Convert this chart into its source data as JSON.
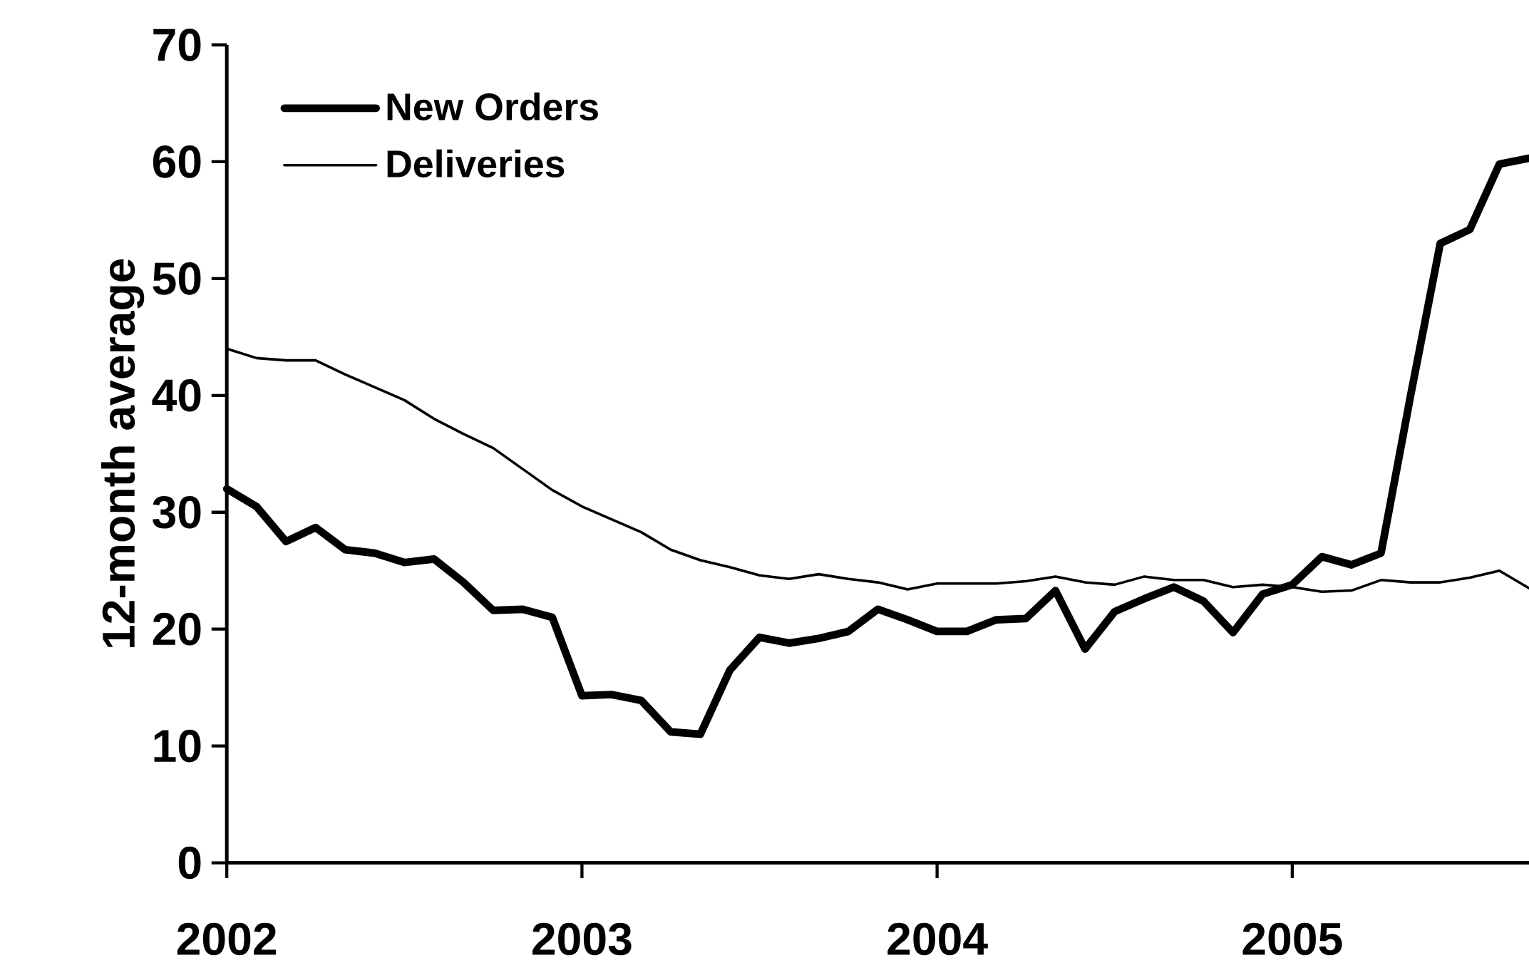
{
  "chart_data": {
    "type": "line",
    "ylabel": "12-month average",
    "x": [
      "2002-01",
      "2002-02",
      "2002-03",
      "2002-04",
      "2002-05",
      "2002-06",
      "2002-07",
      "2002-08",
      "2002-09",
      "2002-10",
      "2002-11",
      "2002-12",
      "2003-01",
      "2003-02",
      "2003-03",
      "2003-04",
      "2003-05",
      "2003-06",
      "2003-07",
      "2003-08",
      "2003-09",
      "2003-10",
      "2003-11",
      "2003-12",
      "2004-01",
      "2004-02",
      "2004-03",
      "2004-04",
      "2004-05",
      "2004-06",
      "2004-07",
      "2004-08",
      "2004-09",
      "2004-10",
      "2004-11",
      "2004-12",
      "2005-01",
      "2005-02",
      "2005-03",
      "2005-04",
      "2005-05",
      "2005-06",
      "2005-07",
      "2005-08",
      "2005-09"
    ],
    "series": [
      {
        "name": "New Orders",
        "color": "#000000",
        "values": [
          32,
          30.5,
          27.5,
          28.7,
          26.8,
          26.5,
          25.7,
          26,
          24,
          21.6,
          21.7,
          21,
          14.3,
          14.4,
          13.9,
          11.2,
          11,
          16.5,
          19.3,
          18.8,
          19.2,
          19.8,
          21.7,
          20.8,
          19.8,
          19.8,
          20.8,
          20.9,
          23.3,
          18.3,
          21.5,
          22.6,
          23.6,
          22.4,
          19.7,
          23,
          23.8,
          26.2,
          25.5,
          26.5,
          40,
          53,
          54.2,
          59.8,
          60.3
        ]
      },
      {
        "name": "Deliveries",
        "color": "#000000",
        "values": [
          44,
          43.2,
          43,
          43,
          41.8,
          40.7,
          39.6,
          38,
          36.7,
          35.5,
          33.7,
          31.9,
          30.5,
          29.4,
          28.3,
          26.8,
          25.9,
          25.3,
          24.6,
          24.3,
          24.7,
          24.3,
          24,
          23.4,
          23.9,
          23.9,
          23.9,
          24.1,
          24.5,
          24,
          23.8,
          24.5,
          24.2,
          24.2,
          23.6,
          23.8,
          23.6,
          23.2,
          23.3,
          24.2,
          24,
          24,
          24.4,
          25,
          23.5
        ]
      }
    ],
    "xlim": [
      "2002-01",
      "2005-09"
    ],
    "xticks": [
      "2002",
      "2003",
      "2004",
      "2005"
    ],
    "ylim": [
      0,
      70
    ],
    "yticks": [
      0,
      10,
      20,
      30,
      40,
      50,
      60,
      70
    ],
    "legend": "top left",
    "grid": false,
    "marker": "none",
    "line_style": "solid"
  }
}
